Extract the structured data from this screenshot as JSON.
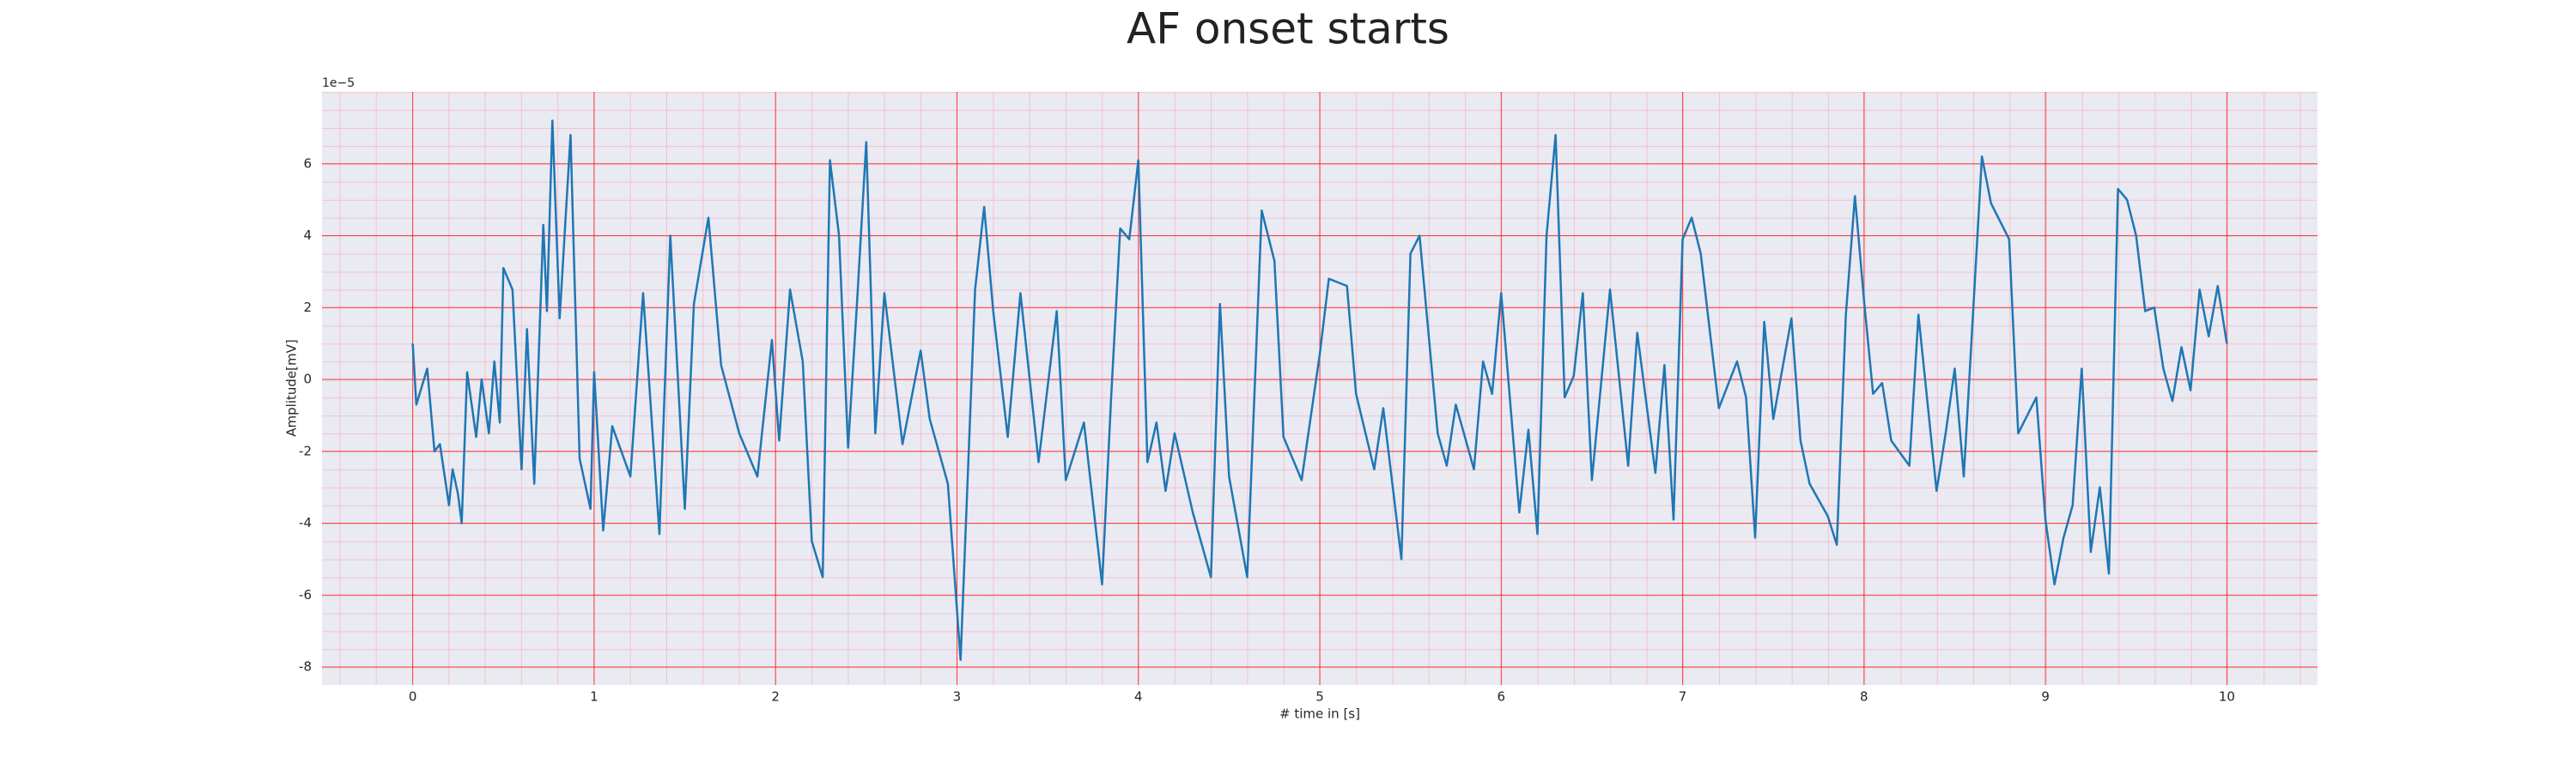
{
  "chart_data": {
    "type": "line",
    "title": "AF onset starts",
    "xlabel": "# time in [s]",
    "ylabel": "Amplitude[mV]",
    "y_offset_text": "1e−5",
    "x": [
      0,
      0.02,
      0.08,
      0.12,
      0.15,
      0.2,
      0.22,
      0.25,
      0.27,
      0.3,
      0.35,
      0.38,
      0.42,
      0.45,
      0.48,
      0.5,
      0.55,
      0.6,
      0.63,
      0.67,
      0.72,
      0.74,
      0.77,
      0.81,
      0.87,
      0.92,
      0.98,
      1.0,
      1.05,
      1.1,
      1.2,
      1.27,
      1.36,
      1.42,
      1.5,
      1.55,
      1.63,
      1.7,
      1.8,
      1.9,
      1.98,
      2.02,
      2.08,
      2.15,
      2.2,
      2.26,
      2.3,
      2.35,
      2.4,
      2.45,
      2.5,
      2.55,
      2.6,
      2.7,
      2.8,
      2.85,
      2.95,
      3.02,
      3.1,
      3.15,
      3.2,
      3.28,
      3.35,
      3.45,
      3.55,
      3.6,
      3.7,
      3.8,
      3.85,
      3.9,
      3.95,
      4.0,
      4.05,
      4.1,
      4.15,
      4.2,
      4.3,
      4.4,
      4.45,
      4.5,
      4.6,
      4.68,
      4.75,
      4.8,
      4.9,
      5.0,
      5.05,
      5.15,
      5.2,
      5.3,
      5.35,
      5.45,
      5.5,
      5.55,
      5.65,
      5.7,
      5.75,
      5.85,
      5.9,
      5.95,
      6.0,
      6.1,
      6.15,
      6.2,
      6.25,
      6.3,
      6.35,
      6.4,
      6.45,
      6.5,
      6.6,
      6.7,
      6.75,
      6.85,
      6.9,
      6.95,
      7.0,
      7.05,
      7.1,
      7.2,
      7.3,
      7.35,
      7.4,
      7.45,
      7.5,
      7.6,
      7.65,
      7.7,
      7.8,
      7.85,
      7.9,
      7.95,
      8.0,
      8.05,
      8.1,
      8.15,
      8.25,
      8.3,
      8.4,
      8.45,
      8.5,
      8.55,
      8.65,
      8.7,
      8.8,
      8.85,
      8.95,
      9.0,
      9.05,
      9.1,
      9.15,
      9.2,
      9.25,
      9.3,
      9.35,
      9.4,
      9.45,
      9.5,
      9.55,
      9.6,
      9.65,
      9.7,
      9.75,
      9.8,
      9.85,
      9.9,
      9.95,
      10.0
    ],
    "series": [
      {
        "color": "#1f77b4",
        "values": [
          1,
          -0.7,
          0.3,
          -2,
          -1.8,
          -3.5,
          -2.5,
          -3.2,
          -4,
          0.2,
          -1.6,
          0,
          -1.5,
          0.5,
          -1.2,
          3.1,
          2.5,
          -2.5,
          1.4,
          -2.9,
          4.3,
          1.9,
          7.2,
          1.7,
          6.8,
          -2.2,
          -3.6,
          0.2,
          -4.2,
          -1.3,
          -2.7,
          2.4,
          -4.3,
          4,
          -3.6,
          2.1,
          4.5,
          0.4,
          -1.5,
          -2.7,
          1.1,
          -1.7,
          2.5,
          0.5,
          -4.5,
          -5.5,
          6.1,
          4,
          -1.9,
          2.2,
          6.6,
          -1.5,
          2.4,
          -1.8,
          0.8,
          -1.1,
          -2.9,
          -7.8,
          2.5,
          4.8,
          1.9,
          -1.6,
          2.4,
          -2.3,
          1.9,
          -2.8,
          -1.2,
          -5.7,
          -0.5,
          4.2,
          3.9,
          6.1,
          -2.3,
          -1.2,
          -3.1,
          -1.5,
          -3.7,
          -5.5,
          2.1,
          -2.7,
          -5.5,
          4.7,
          3.3,
          -1.6,
          -2.8,
          0.7,
          2.8,
          2.6,
          -0.4,
          -2.5,
          -0.8,
          -5,
          3.5,
          4,
          -1.5,
          -2.4,
          -0.7,
          -2.5,
          0.5,
          -0.4,
          2.4,
          -3.7,
          -1.4,
          -4.3,
          4,
          6.8,
          -0.5,
          0.1,
          2.4,
          -2.8,
          2.5,
          -2.4,
          1.3,
          -2.6,
          0.4,
          -3.9,
          3.9,
          4.5,
          3.5,
          -0.8,
          0.5,
          -0.5,
          -4.4,
          1.6,
          -1.1,
          1.7,
          -1.7,
          -2.9,
          -3.8,
          -4.6,
          1.8,
          5.1,
          2.2,
          -0.4,
          -0.1,
          -1.7,
          -2.4,
          1.8,
          -3.1,
          -1.5,
          0.3,
          -2.7,
          6.2,
          4.9,
          3.9,
          -1.5,
          -0.5,
          -3.9,
          -5.7,
          -4.4,
          -3.5,
          0.3,
          -4.8,
          -3,
          -5.4,
          5.3,
          5,
          4,
          1.9,
          2,
          0.3,
          -0.6,
          0.9,
          -0.3,
          2.5,
          1.2,
          2.6,
          1
        ]
      }
    ],
    "xlim": [
      -0.5,
      10.5
    ],
    "ylim": [
      -8.5,
      8
    ],
    "xticks": [
      0,
      1,
      2,
      3,
      4,
      5,
      6,
      7,
      8,
      9,
      10
    ],
    "yticks": [
      -8,
      -6,
      -4,
      -2,
      0,
      2,
      4,
      6
    ],
    "grid": true,
    "grid_color": "#ff0000",
    "background": "#eaeaf2"
  }
}
